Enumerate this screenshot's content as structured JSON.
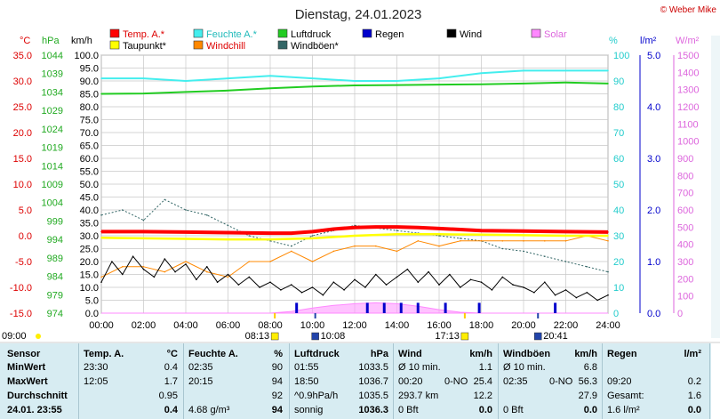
{
  "header": {
    "title": "Dienstag, 24.01.2023",
    "copyright": "© Weber Mike"
  },
  "legend": [
    {
      "label": "Temp. A.*",
      "color": "#ff0000"
    },
    {
      "label": "Feuchte A.*",
      "color": "#44eeee"
    },
    {
      "label": "Luftdruck",
      "color": "#22cc22"
    },
    {
      "label": "Regen",
      "color": "#0000cc"
    },
    {
      "label": "Wind",
      "color": "#000000"
    },
    {
      "label": "Solar",
      "color": "#ff88ff"
    },
    {
      "label": "Taupunkt*",
      "color": "#ffff00"
    },
    {
      "label": "Windchill",
      "color": "#ff8800"
    },
    {
      "label": "Windböen*",
      "color": "#336666"
    }
  ],
  "axis_units": {
    "temp": "°C",
    "pressure": "hPa",
    "wind": "km/h",
    "humidity": "%",
    "rain": "l/m²",
    "solar": "W/m²"
  },
  "sun_markers": {
    "left_time": "09:00",
    "sunrise": "08:13",
    "moonrise": "10:08",
    "sunset": "17:13",
    "moonset": "20:41"
  },
  "chart_data": {
    "type": "line",
    "x_ticks": [
      "00:00",
      "02:00",
      "04:00",
      "06:00",
      "08:00",
      "10:00",
      "12:00",
      "14:00",
      "16:00",
      "18:00",
      "20:00",
      "22:00",
      "24:00"
    ],
    "axes": {
      "temp": {
        "ylim": [
          -15,
          35
        ],
        "ticks": [
          "35.0",
          "30.0",
          "25.0",
          "20.0",
          "15.0",
          "10.0",
          "5.0",
          "0.0",
          "-5.0",
          "-10.0",
          "-15.0"
        ]
      },
      "pressure": {
        "ylim": [
          974,
          1044
        ],
        "ticks": [
          "1044",
          "1039",
          "1034",
          "1029",
          "1024",
          "1019",
          "1014",
          "1009",
          "1004",
          "999",
          "994",
          "989",
          "984",
          "979",
          "974"
        ]
      },
      "wind": {
        "ylim": [
          0,
          100
        ],
        "ticks": [
          "100.0",
          "95.0",
          "90.0",
          "85.0",
          "80.0",
          "75.0",
          "70.0",
          "65.0",
          "60.0",
          "55.0",
          "50.0",
          "45.0",
          "40.0",
          "35.0",
          "30.0",
          "25.0",
          "20.0",
          "15.0",
          "10.0",
          "5.0",
          "0.0"
        ]
      },
      "humidity": {
        "ylim": [
          0,
          100
        ],
        "ticks": [
          "100",
          "90",
          "80",
          "70",
          "60",
          "50",
          "40",
          "30",
          "20",
          "10",
          "0"
        ]
      },
      "rain": {
        "ylim": [
          0,
          5
        ],
        "ticks": [
          "5.0",
          "4.0",
          "3.0",
          "2.0",
          "1.0",
          "0.0"
        ]
      },
      "solar": {
        "ylim": [
          0,
          1500
        ],
        "ticks": [
          "1500",
          "1400",
          "1300",
          "1200",
          "1100",
          "1000",
          "900",
          "800",
          "700",
          "600",
          "500",
          "400",
          "300",
          "200",
          "100",
          "0"
        ]
      }
    },
    "series": [
      {
        "name": "Temp. A.*",
        "axis": "temp",
        "x": [
          0,
          2,
          4,
          6,
          8,
          9,
          10,
          11,
          12,
          13,
          14,
          15,
          16,
          17,
          18,
          20,
          22,
          24
        ],
        "y": [
          0.8,
          0.8,
          0.7,
          0.6,
          0.5,
          0.5,
          0.8,
          1.3,
          1.6,
          1.7,
          1.7,
          1.6,
          1.4,
          1.2,
          1.0,
          0.9,
          0.8,
          0.7
        ]
      },
      {
        "name": "Feuchte A.*",
        "axis": "humidity",
        "x": [
          0,
          2,
          4,
          6,
          8,
          10,
          12,
          14,
          16,
          18,
          20,
          22,
          24
        ],
        "y": [
          91,
          91,
          90,
          91,
          92,
          91,
          90,
          90,
          91,
          93,
          94,
          94,
          94
        ]
      },
      {
        "name": "Luftdruck",
        "axis": "pressure",
        "x": [
          0,
          2,
          4,
          6,
          8,
          10,
          12,
          14,
          16,
          18,
          20,
          22,
          24
        ],
        "y": [
          1033.5,
          1033.6,
          1034.0,
          1034.4,
          1035.0,
          1035.5,
          1035.8,
          1035.9,
          1036.0,
          1036.1,
          1036.3,
          1036.6,
          1036.3
        ]
      },
      {
        "name": "Taupunkt*",
        "axis": "temp",
        "x": [
          0,
          2,
          4,
          6,
          8,
          10,
          12,
          14,
          16,
          18,
          20,
          22,
          24
        ],
        "y": [
          -0.4,
          -0.5,
          -0.6,
          -0.7,
          -0.7,
          -0.5,
          0.0,
          0.3,
          0.3,
          0.2,
          0.1,
          0.0,
          0.0
        ]
      },
      {
        "name": "Windchill",
        "axis": "temp",
        "x": [
          0,
          1,
          2,
          3,
          4,
          5,
          6,
          7,
          8,
          9,
          10,
          11,
          12,
          13,
          14,
          15,
          16,
          17,
          18,
          19,
          20,
          21,
          22,
          23,
          24
        ],
        "y": [
          -8,
          -6,
          -6,
          -7,
          -5,
          -7,
          -8,
          -5,
          -5,
          -3,
          -5,
          -3,
          -2,
          -2,
          -3,
          -1,
          -2,
          -1,
          -1,
          -1,
          -1,
          -1,
          -1,
          0,
          -1
        ]
      },
      {
        "name": "Wind",
        "axis": "wind",
        "x": [
          0,
          0.5,
          1,
          1.5,
          2,
          2.5,
          3,
          3.5,
          4,
          4.5,
          5,
          5.5,
          6,
          6.5,
          7,
          7.5,
          8,
          8.5,
          9,
          9.5,
          10,
          10.5,
          11,
          11.5,
          12,
          12.5,
          13,
          13.5,
          14,
          14.5,
          15,
          15.5,
          16,
          16.5,
          17,
          17.5,
          18,
          18.5,
          19,
          19.5,
          20,
          20.5,
          21,
          21.5,
          22,
          22.5,
          23,
          23.5,
          24
        ],
        "y": [
          12,
          20,
          15,
          22,
          17,
          14,
          21,
          16,
          19,
          13,
          18,
          12,
          15,
          11,
          14,
          10,
          12,
          9,
          11,
          8,
          10,
          7,
          12,
          9,
          13,
          10,
          15,
          11,
          14,
          17,
          12,
          16,
          11,
          15,
          10,
          13,
          12,
          9,
          14,
          11,
          10,
          8,
          12,
          7,
          9,
          6,
          8,
          5,
          7
        ]
      },
      {
        "name": "Windböen*",
        "axis": "wind",
        "x": [
          0,
          1,
          2,
          3,
          4,
          5,
          6,
          7,
          8,
          9,
          10,
          11,
          12,
          13,
          14,
          15,
          16,
          17,
          18,
          19,
          20,
          21,
          22,
          23,
          24
        ],
        "y": [
          38,
          40,
          36,
          44,
          40,
          38,
          34,
          30,
          28,
          26,
          30,
          32,
          34,
          33,
          32,
          31,
          30,
          29,
          28,
          25,
          24,
          22,
          20,
          18,
          16
        ]
      },
      {
        "name": "Solar",
        "axis": "solar",
        "x": [
          0,
          8,
          9,
          10,
          11,
          12,
          13,
          14,
          15,
          16,
          17,
          18,
          24
        ],
        "y": [
          0,
          0,
          10,
          30,
          45,
          55,
          60,
          55,
          40,
          20,
          5,
          0,
          0
        ]
      },
      {
        "name": "Regen",
        "axis": "rain",
        "type": "bar",
        "x": [
          9.25,
          12.6,
          13.4,
          14.2,
          15.0,
          16.3,
          17.9,
          21.5
        ],
        "y": [
          0.2,
          0.2,
          0.2,
          0.2,
          0.2,
          0.2,
          0.2,
          0.2
        ]
      }
    ]
  },
  "stats": {
    "row_labels": [
      "Sensor",
      "MinWert",
      "MaxWert",
      "Durchschnitt",
      "24.01. 23:55"
    ],
    "groups": [
      {
        "name": "Temp. A.",
        "unit": "°C",
        "rows": [
          [
            "23:30",
            "",
            "0.4"
          ],
          [
            "12:05",
            "",
            "1.7"
          ],
          [
            "",
            "",
            "0.95"
          ],
          [
            "",
            "",
            "0.4"
          ]
        ]
      },
      {
        "name": "Feuchte A.",
        "unit": "%",
        "rows": [
          [
            "02:35",
            "",
            "90"
          ],
          [
            "20:15",
            "",
            "94"
          ],
          [
            "",
            "",
            "92"
          ],
          [
            "4.68 g/m³",
            "",
            "94"
          ]
        ]
      },
      {
        "name": "Luftdruck",
        "unit": "hPa",
        "rows": [
          [
            "01:55",
            "",
            "1033.5"
          ],
          [
            "18:50",
            "",
            "1036.7"
          ],
          [
            "^0.9hPa/h",
            "",
            "1035.5"
          ],
          [
            "sonnig",
            "",
            "1036.3"
          ]
        ]
      },
      {
        "name": "Wind",
        "unit": "km/h",
        "rows": [
          [
            "Ø 10 min.",
            "",
            "1.1"
          ],
          [
            "00:20",
            "0-NO",
            "25.4"
          ],
          [
            "293.7 km",
            "",
            "12.2"
          ],
          [
            "0 Bft",
            "",
            "0.0"
          ]
        ]
      },
      {
        "name": "Windböen",
        "unit": "km/h",
        "rows": [
          [
            "Ø 10 min.",
            "",
            "6.8"
          ],
          [
            "02:35",
            "0-NO",
            "56.3"
          ],
          [
            "",
            "",
            "27.9"
          ],
          [
            "0 Bft",
            "",
            "0.0"
          ]
        ]
      },
      {
        "name": "Regen",
        "unit": "l/m²",
        "rows": [
          [
            "",
            "",
            ""
          ],
          [
            "09:20",
            "",
            "0.2"
          ],
          [
            "Gesamt:",
            "",
            "1.6"
          ],
          [
            "1.6 l/m²",
            "",
            "0.0"
          ]
        ]
      }
    ]
  }
}
